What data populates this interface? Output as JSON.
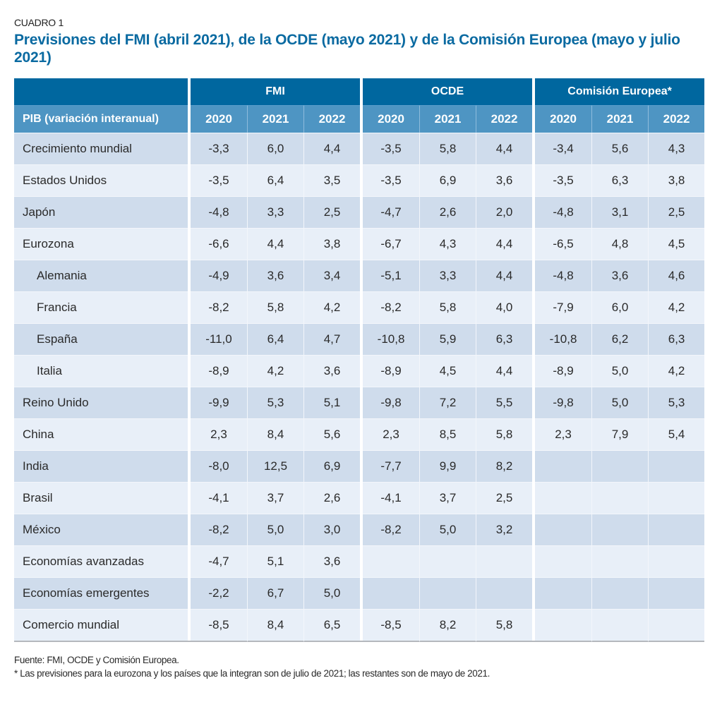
{
  "kicker": "CUADRO 1",
  "title": "Previsiones del FMI (abril 2021), de la OCDE (mayo 2021) y de la Comisión Europea (mayo y julio 2021)",
  "table": {
    "groups": [
      "FMI",
      "OCDE",
      "Comisión Europea*"
    ],
    "row_header": "PIB (variación interanual)",
    "years": [
      "2020",
      "2021",
      "2022"
    ],
    "rows": [
      {
        "label": "Crecimiento mundial",
        "indent": false,
        "fmi": [
          "-3,3",
          "6,0",
          "4,4"
        ],
        "ocde": [
          "-3,5",
          "5,8",
          "4,4"
        ],
        "ce": [
          "-3,4",
          "5,6",
          "4,3"
        ]
      },
      {
        "label": "Estados Unidos",
        "indent": false,
        "fmi": [
          "-3,5",
          "6,4",
          "3,5"
        ],
        "ocde": [
          "-3,5",
          "6,9",
          "3,6"
        ],
        "ce": [
          "-3,5",
          "6,3",
          "3,8"
        ]
      },
      {
        "label": "Japón",
        "indent": false,
        "fmi": [
          "-4,8",
          "3,3",
          "2,5"
        ],
        "ocde": [
          "-4,7",
          "2,6",
          "2,0"
        ],
        "ce": [
          "-4,8",
          "3,1",
          "2,5"
        ]
      },
      {
        "label": "Eurozona",
        "indent": false,
        "fmi": [
          "-6,6",
          "4,4",
          "3,8"
        ],
        "ocde": [
          "-6,7",
          "4,3",
          "4,4"
        ],
        "ce": [
          "-6,5",
          "4,8",
          "4,5"
        ]
      },
      {
        "label": "Alemania",
        "indent": true,
        "fmi": [
          "-4,9",
          "3,6",
          "3,4"
        ],
        "ocde": [
          "-5,1",
          "3,3",
          "4,4"
        ],
        "ce": [
          "-4,8",
          "3,6",
          "4,6"
        ]
      },
      {
        "label": "Francia",
        "indent": true,
        "fmi": [
          "-8,2",
          "5,8",
          "4,2"
        ],
        "ocde": [
          "-8,2",
          "5,8",
          "4,0"
        ],
        "ce": [
          "-7,9",
          "6,0",
          "4,2"
        ]
      },
      {
        "label": "España",
        "indent": true,
        "fmi": [
          "-11,0",
          "6,4",
          "4,7"
        ],
        "ocde": [
          "-10,8",
          "5,9",
          "6,3"
        ],
        "ce": [
          "-10,8",
          "6,2",
          "6,3"
        ]
      },
      {
        "label": "Italia",
        "indent": true,
        "fmi": [
          "-8,9",
          "4,2",
          "3,6"
        ],
        "ocde": [
          "-8,9",
          "4,5",
          "4,4"
        ],
        "ce": [
          "-8,9",
          "5,0",
          "4,2"
        ]
      },
      {
        "label": "Reino Unido",
        "indent": false,
        "fmi": [
          "-9,9",
          "5,3",
          "5,1"
        ],
        "ocde": [
          "-9,8",
          "7,2",
          "5,5"
        ],
        "ce": [
          "-9,8",
          "5,0",
          "5,3"
        ]
      },
      {
        "label": "China",
        "indent": false,
        "fmi": [
          "2,3",
          "8,4",
          "5,6"
        ],
        "ocde": [
          "2,3",
          "8,5",
          "5,8"
        ],
        "ce": [
          "2,3",
          "7,9",
          "5,4"
        ]
      },
      {
        "label": "India",
        "indent": false,
        "fmi": [
          "-8,0",
          "12,5",
          "6,9"
        ],
        "ocde": [
          "-7,7",
          "9,9",
          "8,2"
        ],
        "ce": [
          "",
          "",
          ""
        ]
      },
      {
        "label": "Brasil",
        "indent": false,
        "fmi": [
          "-4,1",
          "3,7",
          "2,6"
        ],
        "ocde": [
          "-4,1",
          "3,7",
          "2,5"
        ],
        "ce": [
          "",
          "",
          ""
        ]
      },
      {
        "label": "México",
        "indent": false,
        "fmi": [
          "-8,2",
          "5,0",
          "3,0"
        ],
        "ocde": [
          "-8,2",
          "5,0",
          "3,2"
        ],
        "ce": [
          "",
          "",
          ""
        ]
      },
      {
        "label": "Economías avanzadas",
        "indent": false,
        "fmi": [
          "-4,7",
          "5,1",
          "3,6"
        ],
        "ocde": [
          "",
          "",
          ""
        ],
        "ce": [
          "",
          "",
          ""
        ]
      },
      {
        "label": "Economías emergentes",
        "indent": false,
        "fmi": [
          "-2,2",
          "6,7",
          "5,0"
        ],
        "ocde": [
          "",
          "",
          ""
        ],
        "ce": [
          "",
          "",
          ""
        ]
      },
      {
        "label": "Comercio mundial",
        "indent": false,
        "fmi": [
          "-8,5",
          "8,4",
          "6,5"
        ],
        "ocde": [
          "-8,5",
          "8,2",
          "5,8"
        ],
        "ce": [
          "",
          "",
          ""
        ]
      }
    ]
  },
  "notes": {
    "source": "Fuente: FMI, OCDE y Comisión Europea.",
    "footnote": "* Las previsiones para la eurozona y los países que la integran son de julio de 2021; las restantes son de mayo de 2021."
  },
  "colors": {
    "title": "#0a6aa1",
    "group_header_bg": "#00679f",
    "year_header_bg": "#4e95c3",
    "row_dark": "#cfdcec",
    "row_light": "#e8eff8"
  }
}
